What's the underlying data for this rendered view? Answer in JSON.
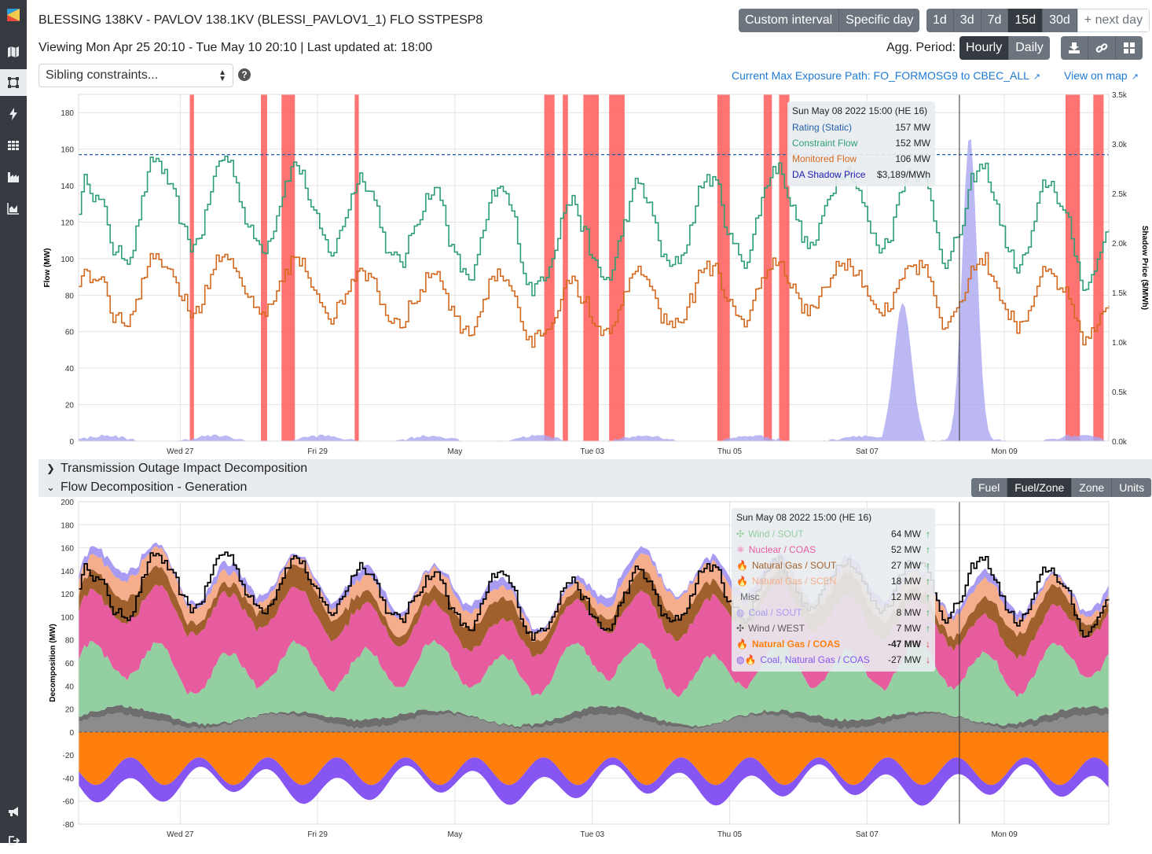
{
  "header": {
    "title": "BLESSING 138KV - PAVLOV 138.1KV (BLESSI_PAVLOV1_1) FLO SSTPESP8",
    "viewing": "Viewing Mon Apr 25 20:10 - Tue May 10 20:10 | Last updated at: 18:00",
    "range_buttons": [
      "Custom interval",
      "Specific day"
    ],
    "interval_buttons": [
      "1d",
      "3d",
      "7d",
      "15d",
      "30d"
    ],
    "active_interval": "15d",
    "next_day": "+ next day",
    "agg_label": "Agg. Period:",
    "agg_buttons": [
      "Hourly",
      "Daily"
    ],
    "active_agg": "Hourly",
    "sibling_select": "Sibling constraints...",
    "help": "?",
    "max_exposure_link": "Current Max Exposure Path: FO_FORMOSG9 to CBEC_ALL",
    "view_on_map": "View on map"
  },
  "sidebar": {
    "icons": [
      "logo-icon",
      "map-icon",
      "constraint-icon",
      "bolt-icon",
      "grid-icon",
      "factory-icon",
      "area-chart-icon",
      "megaphone-icon",
      "logout-icon"
    ],
    "active": "constraint-icon"
  },
  "colors": {
    "rating": "#1f5fa8",
    "constraint_flow": "#2e9e74",
    "monitored_flow": "#d2691e",
    "shadow_price_bar": "#ff5a5a",
    "da_shadow": "#aaa6f0",
    "wind": "#93cfa0",
    "nuclear": "#e75b9f",
    "natural_gas_sout": "#a0602e",
    "natural_gas_scen": "#f6ad8b",
    "coal_sout": "#a99bf2",
    "wind_west": "#5a5a5a",
    "misc": "#8c8c8c",
    "natural_gas_coas": "#ff7f0e",
    "coal_ng_coas": "#8755f2"
  },
  "flow_chart": {
    "ylabel": "Flow (MW)",
    "y2label": "Shadow Price ($/MWh)",
    "ylim": [
      0,
      190
    ],
    "y2lim": [
      0,
      3500
    ],
    "yticks": [
      "0",
      "20",
      "40",
      "60",
      "80",
      "100",
      "120",
      "140",
      "160",
      "180"
    ],
    "y2ticks": [
      "0.0k",
      "0.5k",
      "1.0k",
      "1.5k",
      "2.0k",
      "2.5k",
      "3.0k",
      "3.5k"
    ],
    "xticks": [
      "Wed 27",
      "Fri 29",
      "May",
      "Tue 03",
      "Thu 05",
      "Sat 07",
      "Mon 09"
    ],
    "rating": 157
  },
  "tooltip_top": {
    "header": "Sun May 08 2022 15:00 (HE 16)",
    "rows": [
      {
        "label": "Rating (Static)",
        "value": "157 MW",
        "color": "#1f5fa8"
      },
      {
        "label": "Constraint Flow",
        "value": "152 MW",
        "color": "#2e9e74"
      },
      {
        "label": "Monitored Flow",
        "value": "106 MW",
        "color": "#d2691e"
      },
      {
        "label": "DA Shadow Price",
        "value": "$3,189/MWh",
        "color": "#1b1bb0"
      }
    ]
  },
  "sections": {
    "outage": "Transmission Outage Impact Decomposition",
    "flow_decomp": "Flow Decomposition - Generation",
    "decomp_buttons": [
      "Fuel",
      "Fuel/Zone",
      "Zone",
      "Units"
    ],
    "active_decomp": "Fuel/Zone"
  },
  "decomp_chart": {
    "ylabel": "Decomposition (MW)",
    "ylim": [
      -80,
      200
    ],
    "yticks": [
      "-80",
      "-60",
      "-40",
      "-20",
      "0",
      "20",
      "40",
      "60",
      "80",
      "100",
      "120",
      "140",
      "160",
      "180",
      "200"
    ],
    "xticks": [
      "Wed 27",
      "Fri 29",
      "May",
      "Tue 03",
      "Thu 05",
      "Sat 07",
      "Mon 09"
    ]
  },
  "tooltip_bottom": {
    "header": "Sun May 08 2022 15:00 (HE 16)",
    "rows": [
      {
        "label": "Wind / SOUT",
        "value": "64 MW",
        "dir": "↑",
        "color": "#93cfa0",
        "icon": "✣"
      },
      {
        "label": "Nuclear / COAS",
        "value": "52 MW",
        "dir": "↑",
        "color": "#e75b9f",
        "icon": "⚛"
      },
      {
        "label": "Natural Gas / SOUT",
        "value": "27 MW",
        "dir": "↑",
        "color": "#a0602e",
        "icon": "🔥"
      },
      {
        "label": "Natural Gas / SCEN",
        "value": "18 MW",
        "dir": "↑",
        "color": "#f6ad8b",
        "icon": "🔥"
      },
      {
        "label": "Misc",
        "value": "12 MW",
        "dir": "↑",
        "color": "#666",
        "icon": ""
      },
      {
        "label": "Coal / SOUT",
        "value": "8 MW",
        "dir": "↑",
        "color": "#a99bf2",
        "icon": "◍"
      },
      {
        "label": "Wind / WEST",
        "value": "7 MW",
        "dir": "↑",
        "color": "#5a5a5a",
        "icon": "✣"
      },
      {
        "label": "Natural Gas / COAS",
        "value": "-47 MW",
        "dir": "↓",
        "color": "#ff7f0e",
        "icon": "🔥",
        "bold": true
      },
      {
        "label": "Coal, Natural Gas / COAS",
        "value": "-27 MW",
        "dir": "↓",
        "color": "#8755f2",
        "icon": "◍🔥"
      }
    ]
  }
}
